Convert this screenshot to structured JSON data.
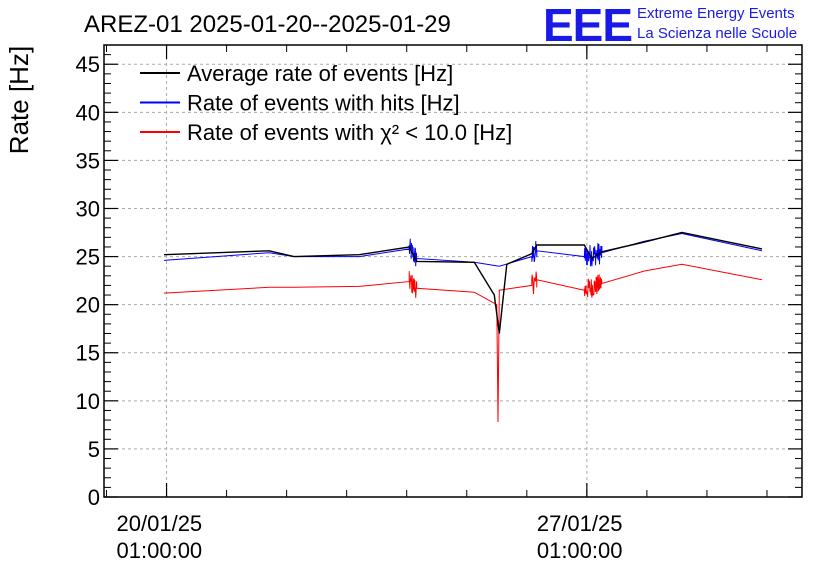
{
  "logo": {
    "mark": "EEE",
    "line1": "Extreme Energy Events",
    "line2": "La Scienza nelle Scuole",
    "color": "#1a1ae6"
  },
  "chart_data": {
    "type": "line",
    "title": "AREZ-01 2025-01-20--2025-01-29",
    "ylabel": "Rate [Hz]",
    "xlabel": "",
    "ylim": [
      0,
      47
    ],
    "yticks": [
      0,
      5,
      10,
      15,
      20,
      25,
      30,
      35,
      40,
      45
    ],
    "xlim": [
      "2025-01-19T00:00:00",
      "2025-01-30T15:00:00"
    ],
    "xticks": [
      {
        "x": "2025-01-20T01:00:00",
        "date": "20/01/25",
        "time": "01:00:00"
      },
      {
        "x": "2025-01-27T01:00:00",
        "date": "27/01/25",
        "time": "01:00:00"
      }
    ],
    "grid": true,
    "legend_position": "top-left",
    "noise": {
      "hits": 1.2,
      "chi2": 1.1,
      "avg": 0.0
    },
    "series": [
      {
        "name": "Average rate of events [Hz]",
        "color": "#000000",
        "points": [
          [
            "2025-01-20T00:00:00",
            25.2
          ],
          [
            "2025-01-21T18:00:00",
            25.6
          ],
          [
            "2025-01-22T04:00:00",
            25.0
          ],
          [
            "2025-01-23T06:00:00",
            25.2
          ],
          [
            "2025-01-24T02:00:00",
            26.0
          ],
          [
            "2025-01-24T05:00:00",
            24.5
          ],
          [
            "2025-01-25T04:00:00",
            24.4
          ],
          [
            "2025-01-25T12:00:00",
            21.0
          ],
          [
            "2025-01-25T14:00:00",
            17.0
          ],
          [
            "2025-01-25T17:00:00",
            24.2
          ],
          [
            "2025-01-26T03:00:00",
            25.3
          ],
          [
            "2025-01-26T05:00:00",
            26.2
          ],
          [
            "2025-01-27T00:00:00",
            26.2
          ],
          [
            "2025-01-27T03:00:00",
            24.8
          ],
          [
            "2025-01-27T07:00:00",
            25.5
          ],
          [
            "2025-01-28T00:00:00",
            26.5
          ],
          [
            "2025-01-28T15:00:00",
            27.5
          ],
          [
            "2025-01-29T23:00:00",
            25.8
          ]
        ]
      },
      {
        "name": "Rate of events with hits [Hz]",
        "color": "#0000ff",
        "points": [
          [
            "2025-01-20T00:00:00",
            24.6
          ],
          [
            "2025-01-21T18:00:00",
            25.4
          ],
          [
            "2025-01-22T04:00:00",
            25.0
          ],
          [
            "2025-01-23T06:00:00",
            25.0
          ],
          [
            "2025-01-24T02:00:00",
            25.8
          ],
          [
            "2025-01-24T05:00:00",
            24.8
          ],
          [
            "2025-01-25T04:00:00",
            24.4
          ],
          [
            "2025-01-25T14:00:00",
            24.0
          ],
          [
            "2025-01-26T03:00:00",
            25.0
          ],
          [
            "2025-01-26T05:00:00",
            25.6
          ],
          [
            "2025-01-27T00:00:00",
            25.0
          ],
          [
            "2025-01-27T07:00:00",
            25.4
          ],
          [
            "2025-01-28T00:00:00",
            26.6
          ],
          [
            "2025-01-28T15:00:00",
            27.4
          ],
          [
            "2025-01-29T23:00:00",
            25.6
          ]
        ]
      },
      {
        "name": "Rate of events with χ² < 10.0 [Hz]",
        "color": "#ff0000",
        "points": [
          [
            "2025-01-20T00:00:00",
            21.2
          ],
          [
            "2025-01-21T18:00:00",
            21.8
          ],
          [
            "2025-01-22T04:00:00",
            21.8
          ],
          [
            "2025-01-23T06:00:00",
            21.9
          ],
          [
            "2025-01-24T02:00:00",
            22.4
          ],
          [
            "2025-01-24T05:00:00",
            21.7
          ],
          [
            "2025-01-25T04:00:00",
            21.3
          ],
          [
            "2025-01-25T13:00:00",
            20.0
          ],
          [
            "2025-01-25T13:30:00",
            7.8
          ],
          [
            "2025-01-25T14:00:00",
            21.5
          ],
          [
            "2025-01-26T03:00:00",
            22.0
          ],
          [
            "2025-01-26T05:00:00",
            22.6
          ],
          [
            "2025-01-27T00:00:00",
            21.5
          ],
          [
            "2025-01-27T07:00:00",
            22.2
          ],
          [
            "2025-01-28T00:00:00",
            23.5
          ],
          [
            "2025-01-28T15:00:00",
            24.2
          ],
          [
            "2025-01-29T23:00:00",
            22.6
          ]
        ]
      }
    ]
  }
}
